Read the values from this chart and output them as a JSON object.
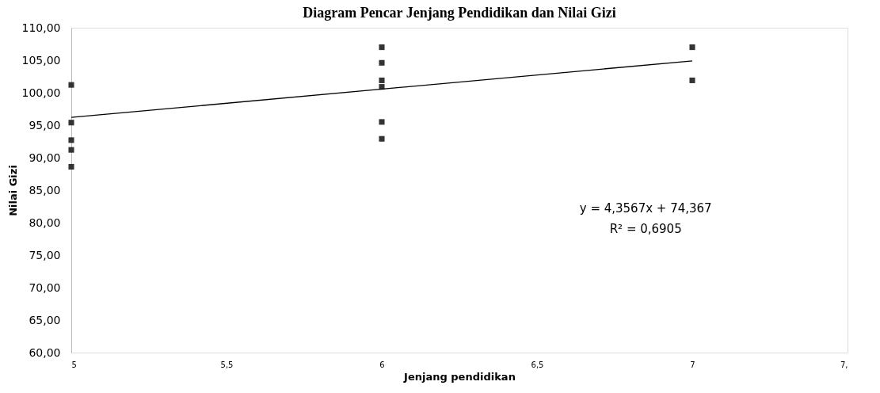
{
  "chart_data": {
    "type": "scatter",
    "title": "Diagram Pencar Jenjang Pendidikan dan Nilai Gizi",
    "xlabel": "Jenjang pendidikan",
    "ylabel": "Nilai Gizi",
    "series": [
      {
        "color": "#333333",
        "marker": "square",
        "x": [
          5,
          5,
          5,
          5,
          5,
          6,
          6,
          6,
          6,
          6,
          6,
          7,
          7
        ],
        "values": [
          101.2,
          95.4,
          92.7,
          91.2,
          88.6,
          107.0,
          104.6,
          101.9,
          100.9,
          95.5,
          92.9,
          107.0,
          101.9
        ]
      },
      {
        "type": "line",
        "color": "#000000",
        "line_style": "solid",
        "x": [
          5,
          7
        ],
        "values": [
          96.2,
          104.9
        ]
      }
    ],
    "xlim": [
      5,
      7.5
    ],
    "xticks": [
      5,
      {
        "value": 5.5,
        "label": "5,5"
      },
      6,
      {
        "value": 6.5,
        "label": "6,5"
      },
      7,
      {
        "value": 7.5,
        "label": "7,"
      }
    ],
    "ylim": [
      60,
      110
    ],
    "yticks": [
      {
        "value": 60,
        "label": "60,00"
      },
      {
        "value": 65,
        "label": "65,00"
      },
      {
        "value": 70,
        "label": "70,00"
      },
      {
        "value": 75,
        "label": "75,00"
      },
      {
        "value": 80,
        "label": "80,00"
      },
      {
        "value": 85,
        "label": "85,00"
      },
      {
        "value": 90,
        "label": "90,00"
      },
      {
        "value": 95,
        "label": "95,00"
      },
      {
        "value": 100,
        "label": "100,00"
      },
      {
        "value": 105,
        "label": "105,00"
      },
      {
        "value": 110,
        "label": "110,00"
      }
    ],
    "annotations": [
      "y = 4,3567x + 74,367",
      "R² = 0,6905"
    ],
    "grid": false
  }
}
